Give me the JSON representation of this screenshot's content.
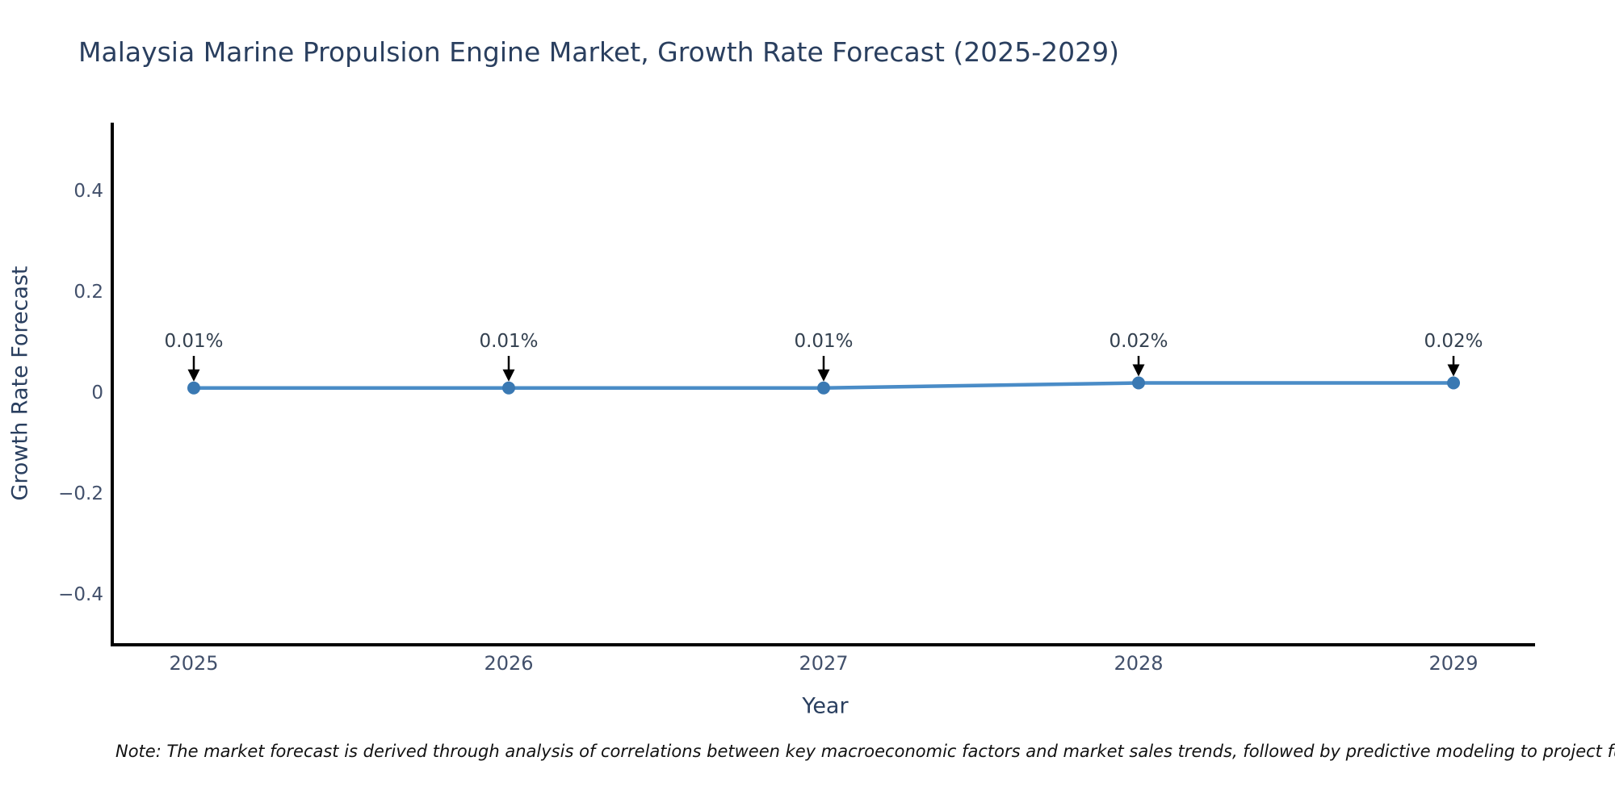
{
  "chart_data": {
    "type": "line",
    "title": "Malaysia Marine Propulsion Engine Market, Growth Rate Forecast (2025-2029)",
    "xlabel": "Year",
    "ylabel": "Growth Rate Forecast",
    "categories": [
      "2025",
      "2026",
      "2027",
      "2028",
      "2029"
    ],
    "series": [
      {
        "name": "Growth Rate Forecast",
        "values": [
          0.01,
          0.01,
          0.01,
          0.02,
          0.02
        ],
        "point_labels": [
          "0.01%",
          "0.01%",
          "0.01%",
          "0.02%",
          "0.02%"
        ]
      }
    ],
    "ytick_values": [
      0.4,
      0.2,
      0,
      -0.2,
      -0.4
    ],
    "ytick_labels": [
      "0.4",
      "0.2",
      "0",
      "−0.2",
      "−0.4"
    ],
    "ylim": [
      -0.5,
      0.53
    ],
    "grid": false,
    "legend_position": "none",
    "annotation_style": "black downward arrows from percentage labels to markers",
    "colors": {
      "line": "#4a8cc7",
      "marker": "#3a79b3",
      "arrow": "#000000",
      "axis": "#000000",
      "title_text": "#2a3f5f",
      "tick_text": "#42506b"
    }
  },
  "note": "Note: The market forecast is derived through analysis of correlations between key macroeconomic factors and market sales trends, followed by predictive modeling to project future sa"
}
